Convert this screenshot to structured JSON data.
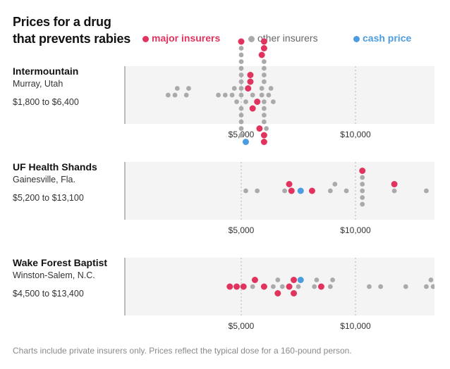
{
  "header": {
    "title_line1": "Prices for a drug",
    "title_line2": "that prevents rabies"
  },
  "legend": [
    {
      "key": "major",
      "label": "major insurers",
      "color": "#e0345e"
    },
    {
      "key": "other",
      "label": "other insurers",
      "color": "#aaaaaa"
    },
    {
      "key": "cash",
      "label": "cash price",
      "color": "#4c9de0"
    }
  ],
  "footnote": "Charts include private insurers only. Prices reflect the typical dose for a 160-pound person.",
  "chart_data": [
    {
      "type": "scatter",
      "title": "Intermountain",
      "subtitle": "Murray, Utah",
      "range_label": "$1,800 to $6,400",
      "xlim": [
        0,
        13800
      ],
      "xticks": [
        {
          "value": 5000,
          "label": "$5,000"
        },
        {
          "value": 10000,
          "label": "$10,000"
        }
      ],
      "grid": true,
      "series": [
        {
          "name": "major insurers",
          "values": [
            5300,
            5400,
            5800,
            5900,
            6000,
            6000,
            5000,
            6000,
            5700,
            5500,
            5400,
            6000
          ]
        },
        {
          "name": "other insurers",
          "values": [
            1800,
            2100,
            2200,
            2600,
            2700,
            4000,
            4300,
            4600,
            4700,
            4800,
            5000,
            5000,
            5000,
            5000,
            5000,
            5000,
            5000,
            5000,
            5000,
            5000,
            5000,
            5000,
            5000,
            5200,
            5500,
            5900,
            5900,
            6000,
            6000,
            6000,
            6000,
            6000,
            6000,
            6000,
            6000,
            6100,
            6200,
            6300,
            6400
          ]
        },
        {
          "name": "cash price",
          "values": [
            5200
          ]
        }
      ]
    },
    {
      "type": "scatter",
      "title": "UF Health Shands",
      "subtitle": "Gainesville, Fla.",
      "range_label": "$5,200 to $13,100",
      "xlim": [
        0,
        13800
      ],
      "xticks": [
        {
          "value": 5000,
          "label": "$5,000"
        },
        {
          "value": 10000,
          "label": "$10,000"
        }
      ],
      "grid": true,
      "series": [
        {
          "name": "major insurers",
          "values": [
            7200,
            7100,
            8100,
            10300,
            11700
          ]
        },
        {
          "name": "other insurers",
          "values": [
            5200,
            5700,
            6900,
            8900,
            9100,
            9600,
            10300,
            10300,
            10300,
            10300,
            10300,
            11700,
            13100
          ]
        },
        {
          "name": "cash price",
          "values": [
            7600
          ]
        }
      ]
    },
    {
      "type": "scatter",
      "title": "Wake Forest Baptist",
      "subtitle": "Winston-Salem, N.C.",
      "range_label": "$4,500 to $13,400",
      "xlim": [
        0,
        13800
      ],
      "xticks": [
        {
          "value": 5000,
          "label": "$5,000"
        },
        {
          "value": 10000,
          "label": "$10,000"
        }
      ],
      "grid": true,
      "series": [
        {
          "name": "major insurers",
          "values": [
            4500,
            4800,
            5100,
            5600,
            6000,
            6600,
            7100,
            7300,
            7300,
            8500
          ]
        },
        {
          "name": "other insurers",
          "values": [
            5500,
            6400,
            6600,
            6800,
            7500,
            8200,
            8300,
            8900,
            9000,
            10600,
            11100,
            12200,
            13100,
            13300,
            13400
          ]
        },
        {
          "name": "cash price",
          "values": [
            7600
          ]
        }
      ]
    }
  ]
}
